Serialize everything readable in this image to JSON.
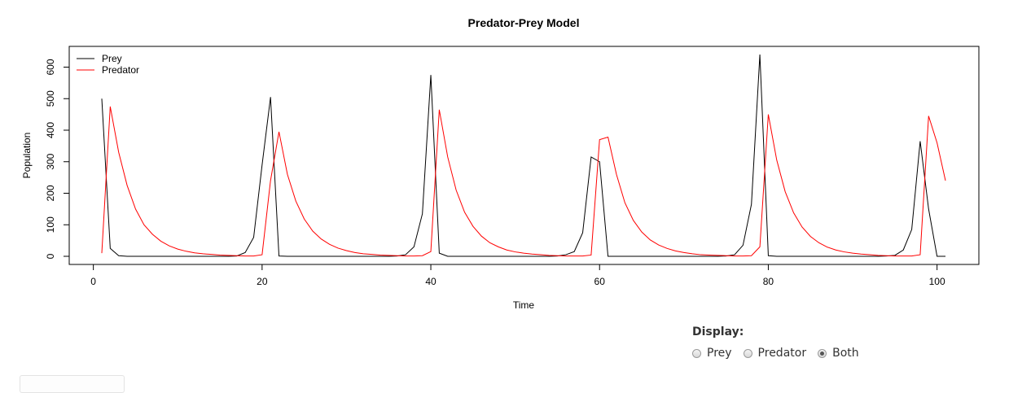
{
  "chart_data": {
    "type": "line",
    "title": "Predator-Prey Model",
    "xlabel": "Time",
    "ylabel": "Population",
    "xlim": [
      1,
      101
    ],
    "ylim": [
      0,
      640
    ],
    "xticks": [
      0,
      20,
      40,
      60,
      80,
      100
    ],
    "yticks": [
      0,
      100,
      200,
      300,
      400,
      500,
      600
    ],
    "legend": "top-left",
    "grid": false,
    "series": [
      {
        "name": "Prey",
        "color": "#000000",
        "x": [
          1,
          2,
          3,
          4,
          5,
          6,
          7,
          8,
          9,
          10,
          11,
          12,
          13,
          14,
          15,
          16,
          17,
          18,
          19,
          20,
          21,
          22,
          23,
          24,
          25,
          26,
          27,
          28,
          29,
          30,
          31,
          32,
          33,
          34,
          35,
          36,
          37,
          38,
          39,
          40,
          41,
          42,
          43,
          44,
          45,
          46,
          47,
          48,
          49,
          50,
          51,
          52,
          53,
          54,
          55,
          56,
          57,
          58,
          59,
          60,
          61,
          62,
          63,
          64,
          65,
          66,
          67,
          68,
          69,
          70,
          71,
          72,
          73,
          74,
          75,
          76,
          77,
          78,
          79,
          80,
          81,
          82,
          83,
          84,
          85,
          86,
          87,
          88,
          89,
          90,
          91,
          92,
          93,
          94,
          95,
          96,
          97,
          98,
          99,
          100,
          101
        ],
        "y": [
          500,
          25,
          2,
          0,
          0,
          0,
          0,
          0,
          0,
          0,
          0,
          0,
          0,
          0,
          0,
          0,
          1,
          12,
          60,
          290,
          505,
          1,
          0,
          0,
          0,
          0,
          0,
          0,
          0,
          0,
          0,
          0,
          0,
          0,
          0,
          1,
          5,
          30,
          135,
          575,
          10,
          0,
          0,
          0,
          0,
          0,
          0,
          0,
          0,
          0,
          0,
          0,
          0,
          0,
          1,
          5,
          15,
          75,
          315,
          300,
          0,
          0,
          0,
          0,
          0,
          0,
          0,
          0,
          0,
          0,
          0,
          0,
          0,
          0,
          1,
          5,
          35,
          165,
          640,
          2,
          0,
          0,
          0,
          0,
          0,
          0,
          0,
          0,
          0,
          0,
          0,
          0,
          0,
          1,
          3,
          20,
          85,
          365,
          150,
          0,
          0
        ]
      },
      {
        "name": "Predator",
        "color": "#ff0000",
        "x": [
          1,
          2,
          3,
          4,
          5,
          6,
          7,
          8,
          9,
          10,
          11,
          12,
          13,
          14,
          15,
          16,
          17,
          18,
          19,
          20,
          21,
          22,
          23,
          24,
          25,
          26,
          27,
          28,
          29,
          30,
          31,
          32,
          33,
          34,
          35,
          36,
          37,
          38,
          39,
          40,
          41,
          42,
          43,
          44,
          45,
          46,
          47,
          48,
          49,
          50,
          51,
          52,
          53,
          54,
          55,
          56,
          57,
          58,
          59,
          60,
          61,
          62,
          63,
          64,
          65,
          66,
          67,
          68,
          69,
          70,
          71,
          72,
          73,
          74,
          75,
          76,
          77,
          78,
          79,
          80,
          81,
          82,
          83,
          84,
          85,
          86,
          87,
          88,
          89,
          90,
          91,
          92,
          93,
          94,
          95,
          96,
          97,
          98,
          99,
          100,
          101
        ],
        "y": [
          10,
          475,
          330,
          225,
          150,
          100,
          70,
          48,
          33,
          23,
          16,
          11,
          8,
          6,
          4,
          3,
          2,
          1,
          1,
          5,
          240,
          395,
          260,
          175,
          118,
          80,
          55,
          38,
          26,
          18,
          12,
          8,
          6,
          4,
          3,
          2,
          1,
          1,
          2,
          15,
          465,
          315,
          210,
          140,
          95,
          64,
          43,
          30,
          20,
          14,
          10,
          7,
          5,
          3,
          2,
          1,
          1,
          1,
          4,
          370,
          378,
          260,
          170,
          114,
          77,
          52,
          36,
          25,
          17,
          12,
          8,
          5,
          4,
          3,
          2,
          1,
          1,
          2,
          30,
          450,
          305,
          205,
          138,
          93,
          63,
          43,
          29,
          20,
          14,
          10,
          7,
          5,
          3,
          2,
          1,
          1,
          1,
          5,
          445,
          360,
          240
        ]
      }
    ]
  },
  "controls": {
    "label": "Display:",
    "options": [
      "Prey",
      "Predator",
      "Both"
    ],
    "selected": "Both"
  }
}
